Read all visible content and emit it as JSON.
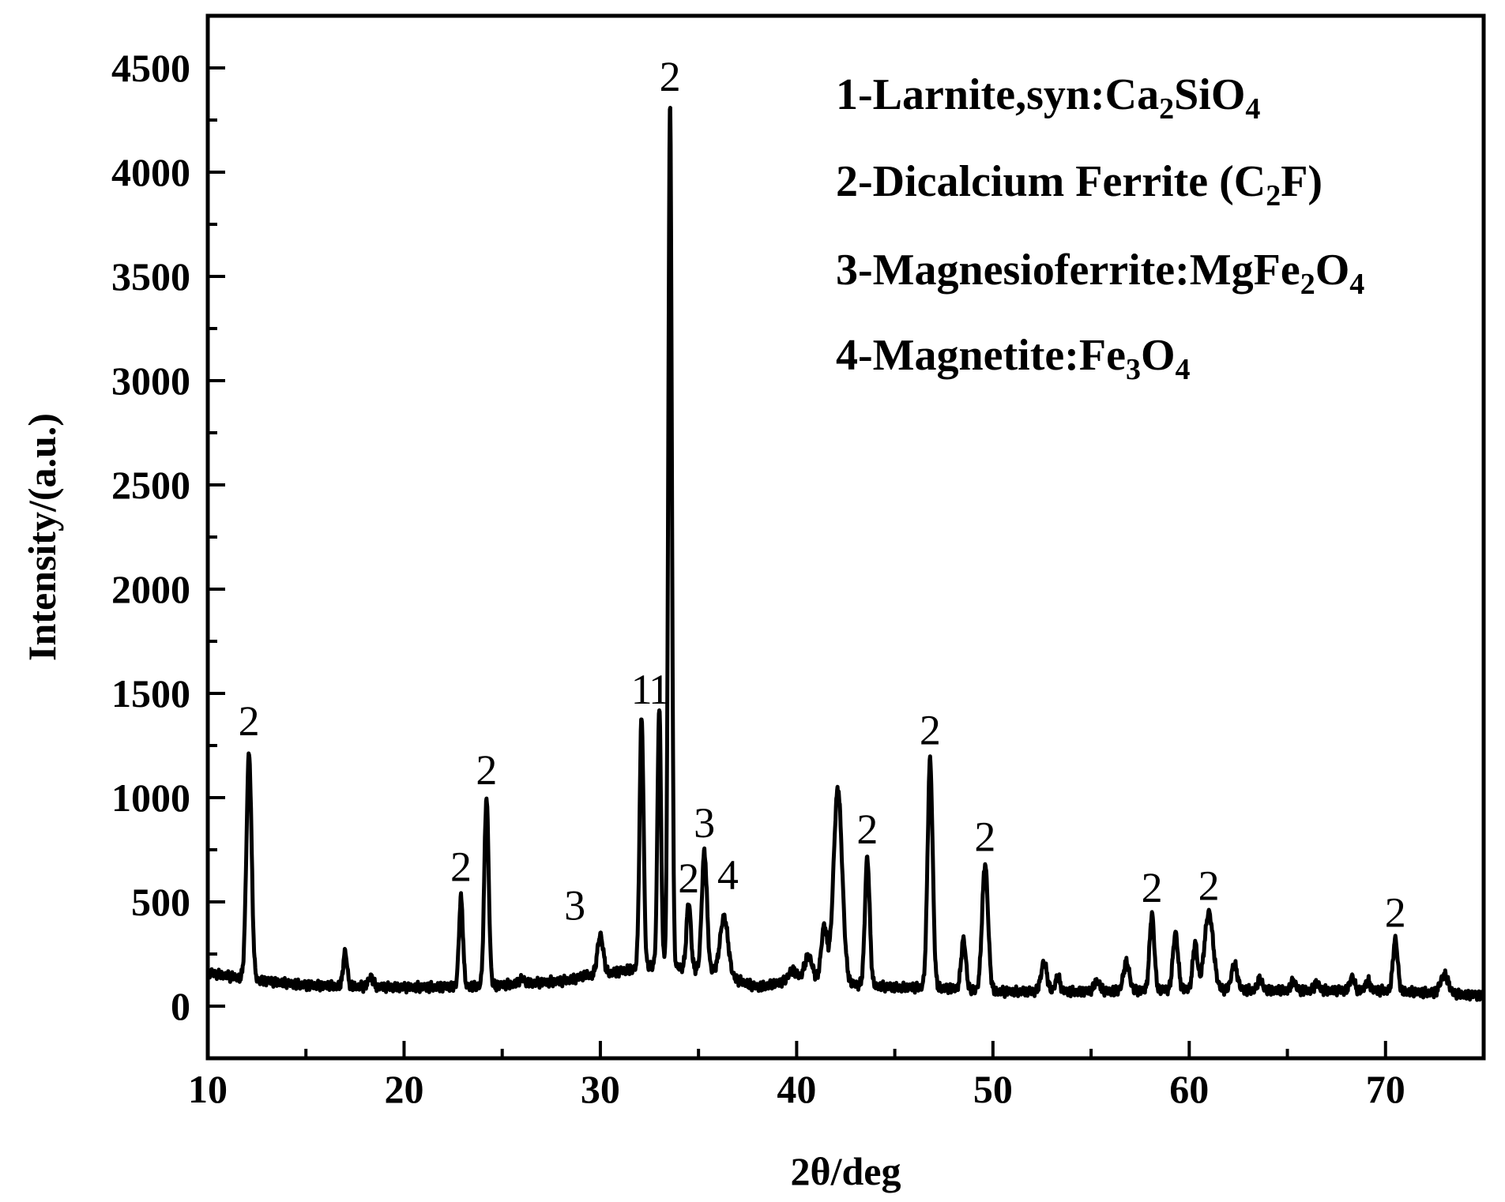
{
  "chart_data": {
    "type": "line",
    "title": "",
    "xlabel": "2θ/deg",
    "ylabel": "Intensity/(a.u.)",
    "xlim": [
      10,
      75
    ],
    "ylim": [
      -250,
      4750
    ],
    "x_ticks": [
      10,
      20,
      30,
      40,
      50,
      60,
      70
    ],
    "y_ticks": [
      0,
      500,
      1000,
      1500,
      2000,
      2500,
      3000,
      3500,
      4000,
      4500
    ],
    "grid": false,
    "legend_position": "top-right",
    "legend": [
      {
        "prefix": "1-Larnite,syn:",
        "formula": [
          [
            "Ca",
            ""
          ],
          [
            "2",
            "sub"
          ],
          [
            "SiO",
            ""
          ],
          [
            "4",
            "sub"
          ]
        ]
      },
      {
        "prefix": "2-Dicalcium Ferrite (",
        "formula": [
          [
            "C",
            ""
          ],
          [
            "2",
            "sub"
          ],
          [
            "F)",
            ""
          ]
        ]
      },
      {
        "prefix": "3-Magnesioferrite:",
        "formula": [
          [
            "MgFe",
            ""
          ],
          [
            "2",
            "sub"
          ],
          [
            "O",
            ""
          ],
          [
            "4",
            "sub"
          ]
        ]
      },
      {
        "prefix": "4-Magnetite:",
        "formula": [
          [
            "Fe",
            ""
          ],
          [
            "3",
            "sub"
          ],
          [
            "O",
            ""
          ],
          [
            "4",
            "sub"
          ]
        ]
      }
    ],
    "series": [
      {
        "baseline": [
          [
            10,
            160
          ],
          [
            12,
            130
          ],
          [
            15,
            100
          ],
          [
            20,
            90
          ],
          [
            24,
            95
          ],
          [
            28,
            120
          ],
          [
            30,
            150
          ],
          [
            33,
            200
          ],
          [
            36,
            160
          ],
          [
            38,
            90
          ],
          [
            40,
            130
          ],
          [
            42,
            110
          ],
          [
            45,
            90
          ],
          [
            47,
            90
          ],
          [
            50,
            70
          ],
          [
            55,
            70
          ],
          [
            60,
            80
          ],
          [
            65,
            75
          ],
          [
            70,
            75
          ],
          [
            75,
            50
          ]
        ],
        "peaks": [
          {
            "x": 12.1,
            "y": 1210,
            "w": 0.13
          },
          {
            "x": 17.0,
            "y": 260,
            "w": 0.1
          },
          {
            "x": 18.3,
            "y": 140,
            "w": 0.12
          },
          {
            "x": 22.9,
            "y": 520,
            "w": 0.1
          },
          {
            "x": 24.2,
            "y": 1000,
            "w": 0.11
          },
          {
            "x": 26.0,
            "y": 130,
            "w": 0.15
          },
          {
            "x": 29.3,
            "y": 150,
            "w": 0.2
          },
          {
            "x": 30.0,
            "y": 340,
            "w": 0.15
          },
          {
            "x": 32.1,
            "y": 1390,
            "w": 0.1
          },
          {
            "x": 33.0,
            "y": 1440,
            "w": 0.09
          },
          {
            "x": 33.55,
            "y": 4330,
            "w": 0.09
          },
          {
            "x": 34.5,
            "y": 500,
            "w": 0.11
          },
          {
            "x": 35.3,
            "y": 740,
            "w": 0.13
          },
          {
            "x": 36.3,
            "y": 430,
            "w": 0.2
          },
          {
            "x": 39.8,
            "y": 170,
            "w": 0.2
          },
          {
            "x": 40.6,
            "y": 240,
            "w": 0.2
          },
          {
            "x": 41.4,
            "y": 380,
            "w": 0.15
          },
          {
            "x": 42.1,
            "y": 1040,
            "w": 0.22
          },
          {
            "x": 43.6,
            "y": 710,
            "w": 0.12
          },
          {
            "x": 46.8,
            "y": 1180,
            "w": 0.13
          },
          {
            "x": 48.5,
            "y": 320,
            "w": 0.12
          },
          {
            "x": 49.6,
            "y": 680,
            "w": 0.15
          },
          {
            "x": 52.6,
            "y": 210,
            "w": 0.15
          },
          {
            "x": 53.3,
            "y": 140,
            "w": 0.12
          },
          {
            "x": 55.3,
            "y": 120,
            "w": 0.15
          },
          {
            "x": 56.8,
            "y": 210,
            "w": 0.15
          },
          {
            "x": 58.1,
            "y": 440,
            "w": 0.12
          },
          {
            "x": 59.3,
            "y": 350,
            "w": 0.13
          },
          {
            "x": 60.3,
            "y": 300,
            "w": 0.12
          },
          {
            "x": 61.0,
            "y": 450,
            "w": 0.22
          },
          {
            "x": 62.3,
            "y": 200,
            "w": 0.15
          },
          {
            "x": 63.6,
            "y": 130,
            "w": 0.12
          },
          {
            "x": 65.3,
            "y": 120,
            "w": 0.12
          },
          {
            "x": 66.5,
            "y": 110,
            "w": 0.12
          },
          {
            "x": 68.3,
            "y": 140,
            "w": 0.12
          },
          {
            "x": 69.1,
            "y": 120,
            "w": 0.12
          },
          {
            "x": 70.5,
            "y": 320,
            "w": 0.12
          },
          {
            "x": 73.0,
            "y": 150,
            "w": 0.2
          }
        ]
      }
    ],
    "annotations": [
      {
        "text": "2",
        "x": 12.1,
        "y": 1300
      },
      {
        "text": "2",
        "x": 22.9,
        "y": 600
      },
      {
        "text": "2",
        "x": 24.2,
        "y": 1065
      },
      {
        "text": "3",
        "x": 28.7,
        "y": 415
      },
      {
        "text": "1",
        "x": 32.1,
        "y": 1450
      },
      {
        "text": "1",
        "x": 33.0,
        "y": 1450
      },
      {
        "text": "2",
        "x": 33.55,
        "y": 4390
      },
      {
        "text": "2",
        "x": 34.5,
        "y": 545
      },
      {
        "text": "3",
        "x": 35.3,
        "y": 810
      },
      {
        "text": "4",
        "x": 36.5,
        "y": 560
      },
      {
        "text": "2",
        "x": 43.6,
        "y": 780
      },
      {
        "text": "2",
        "x": 46.8,
        "y": 1255
      },
      {
        "text": "2",
        "x": 49.6,
        "y": 745
      },
      {
        "text": "2",
        "x": 58.1,
        "y": 500
      },
      {
        "text": "2",
        "x": 61.0,
        "y": 510
      },
      {
        "text": "2",
        "x": 70.5,
        "y": 380
      }
    ]
  }
}
